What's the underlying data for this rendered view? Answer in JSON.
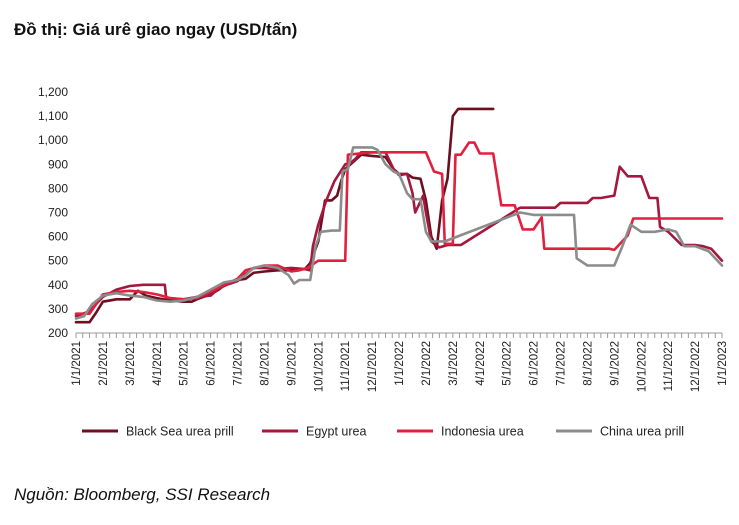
{
  "chart_title": "Đồ thị: Giá urê giao ngay (USD/tấn)",
  "source": "Nguồn: Bloomberg, SSI Research",
  "chart_data": {
    "type": "line",
    "title": "Đồ thị: Giá urê giao ngay (USD/tấn)",
    "xlabel": "",
    "ylabel": "",
    "ylim": [
      200,
      1200
    ],
    "yticks": [
      {
        "value": 200,
        "label": "200"
      },
      {
        "value": 300,
        "label": "300"
      },
      {
        "value": 400,
        "label": "400"
      },
      {
        "value": 500,
        "label": "500"
      },
      {
        "value": 600,
        "label": "600"
      },
      {
        "value": 700,
        "label": "700"
      },
      {
        "value": 800,
        "label": "800"
      },
      {
        "value": 900,
        "label": "900"
      },
      {
        "value": 1000,
        "label": "1,000"
      },
      {
        "value": 1100,
        "label": "1,100"
      },
      {
        "value": 1200,
        "label": "1,200"
      }
    ],
    "xlim": [
      0,
      24
    ],
    "xticks": [
      {
        "value": 0,
        "label": "1/1/2021"
      },
      {
        "value": 1,
        "label": "2/1/2021"
      },
      {
        "value": 2,
        "label": "3/1/2021"
      },
      {
        "value": 3,
        "label": "4/1/2021"
      },
      {
        "value": 4,
        "label": "5/1/2021"
      },
      {
        "value": 5,
        "label": "6/1/2021"
      },
      {
        "value": 6,
        "label": "7/1/2021"
      },
      {
        "value": 7,
        "label": "8/1/2021"
      },
      {
        "value": 8,
        "label": "9/1/2021"
      },
      {
        "value": 9,
        "label": "10/1/2021"
      },
      {
        "value": 10,
        "label": "11/1/2021"
      },
      {
        "value": 11,
        "label": "12/1/2021"
      },
      {
        "value": 12,
        "label": "1/1/2022"
      },
      {
        "value": 13,
        "label": "2/1/2022"
      },
      {
        "value": 14,
        "label": "3/1/2022"
      },
      {
        "value": 15,
        "label": "4/1/2022"
      },
      {
        "value": 16,
        "label": "5/1/2022"
      },
      {
        "value": 17,
        "label": "6/1/2022"
      },
      {
        "value": 18,
        "label": "7/1/2022"
      },
      {
        "value": 19,
        "label": "8/1/2022"
      },
      {
        "value": 20,
        "label": "9/1/2022"
      },
      {
        "value": 21,
        "label": "10/1/2022"
      },
      {
        "value": 22,
        "label": "11/1/2022"
      },
      {
        "value": 23,
        "label": "12/1/2022"
      },
      {
        "value": 24,
        "label": "1/1/2023"
      }
    ],
    "grid": false,
    "legend_position": "bottom",
    "series": [
      {
        "name": "Black Sea urea prill",
        "color": "#6b1020",
        "points": [
          [
            0,
            245
          ],
          [
            0.5,
            245
          ],
          [
            0.75,
            285
          ],
          [
            1.0,
            330
          ],
          [
            1.5,
            340
          ],
          [
            2,
            340
          ],
          [
            2.3,
            375
          ],
          [
            2.6,
            355
          ],
          [
            3,
            345
          ],
          [
            3.5,
            335
          ],
          [
            4,
            330
          ],
          [
            4.3,
            330
          ],
          [
            4.6,
            345
          ],
          [
            5,
            360
          ],
          [
            5.3,
            380
          ],
          [
            5.6,
            405
          ],
          [
            6,
            420
          ],
          [
            6.3,
            425
          ],
          [
            6.6,
            450
          ],
          [
            7,
            455
          ],
          [
            7.5,
            460
          ],
          [
            8,
            460
          ],
          [
            8.5,
            465
          ],
          [
            8.7,
            490
          ],
          [
            9,
            580
          ],
          [
            9.25,
            750
          ],
          [
            9.5,
            750
          ],
          [
            9.7,
            770
          ],
          [
            9.85,
            830
          ],
          [
            10,
            880
          ],
          [
            10.2,
            900
          ],
          [
            10.4,
            920
          ],
          [
            10.6,
            940
          ],
          [
            11,
            935
          ],
          [
            11.5,
            930
          ],
          [
            11.8,
            880
          ],
          [
            12,
            855
          ],
          [
            12.3,
            860
          ],
          [
            12.5,
            845
          ],
          [
            12.8,
            840
          ],
          [
            13,
            750
          ],
          [
            13.2,
            600
          ],
          [
            13.4,
            550
          ],
          [
            13.6,
            750
          ],
          [
            13.8,
            840
          ],
          [
            14,
            1100
          ],
          [
            14.2,
            1130
          ],
          [
            15,
            1130
          ],
          [
            15.5,
            1130
          ]
        ]
      },
      {
        "name": "Egypt urea",
        "color": "#a3183c",
        "points": [
          [
            0,
            270
          ],
          [
            0.5,
            290
          ],
          [
            1,
            350
          ],
          [
            1.5,
            380
          ],
          [
            2,
            395
          ],
          [
            2.5,
            400
          ],
          [
            3,
            400
          ],
          [
            3.3,
            400
          ],
          [
            3.35,
            345
          ],
          [
            4,
            340
          ],
          [
            4.5,
            350
          ],
          [
            5,
            355
          ],
          [
            5.3,
            385
          ],
          [
            5.6,
            400
          ],
          [
            6,
            415
          ],
          [
            6.3,
            445
          ],
          [
            6.6,
            470
          ],
          [
            7,
            470
          ],
          [
            7.5,
            465
          ],
          [
            8,
            470
          ],
          [
            8.5,
            465
          ],
          [
            8.7,
            460
          ],
          [
            8.8,
            560
          ],
          [
            9,
            650
          ],
          [
            9.3,
            750
          ],
          [
            9.6,
            830
          ],
          [
            10,
            900
          ],
          [
            10.2,
            905
          ],
          [
            10.4,
            925
          ],
          [
            10.6,
            950
          ],
          [
            11,
            950
          ],
          [
            11.5,
            950
          ],
          [
            11.8,
            880
          ],
          [
            12,
            860
          ],
          [
            12.3,
            860
          ],
          [
            12.5,
            780
          ],
          [
            12.6,
            700
          ],
          [
            12.9,
            770
          ],
          [
            13,
            700
          ],
          [
            13.2,
            580
          ],
          [
            13.5,
            555
          ],
          [
            13.8,
            565
          ],
          [
            14.3,
            565
          ],
          [
            16.5,
            720
          ],
          [
            17,
            720
          ],
          [
            17.5,
            720
          ],
          [
            17.8,
            720
          ],
          [
            18,
            740
          ],
          [
            18.5,
            740
          ],
          [
            19,
            740
          ],
          [
            19.2,
            760
          ],
          [
            19.5,
            760
          ],
          [
            20,
            770
          ],
          [
            20.2,
            890
          ],
          [
            20.5,
            850
          ],
          [
            21,
            850
          ],
          [
            21.3,
            760
          ],
          [
            21.6,
            760
          ],
          [
            21.7,
            640
          ],
          [
            22,
            620
          ],
          [
            22.5,
            565
          ],
          [
            23,
            565
          ],
          [
            23.3,
            560
          ],
          [
            23.6,
            550
          ],
          [
            24,
            500
          ]
        ]
      },
      {
        "name": "Indonesia urea",
        "color": "#e0203f",
        "points": [
          [
            0,
            280
          ],
          [
            0.5,
            280
          ],
          [
            1,
            360
          ],
          [
            1.5,
            370
          ],
          [
            2,
            375
          ],
          [
            2.5,
            370
          ],
          [
            3,
            360
          ],
          [
            3.5,
            345
          ],
          [
            4,
            340
          ],
          [
            4.5,
            345
          ],
          [
            5,
            370
          ],
          [
            5.5,
            400
          ],
          [
            6,
            425
          ],
          [
            6.3,
            460
          ],
          [
            7,
            480
          ],
          [
            7.5,
            480
          ],
          [
            8,
            455
          ],
          [
            8.3,
            460
          ],
          [
            8.6,
            470
          ],
          [
            9,
            500
          ],
          [
            9.5,
            500
          ],
          [
            10,
            500
          ],
          [
            10.1,
            940
          ],
          [
            11,
            950
          ],
          [
            12,
            950
          ],
          [
            13,
            950
          ],
          [
            13.3,
            870
          ],
          [
            13.6,
            860
          ],
          [
            13.7,
            570
          ],
          [
            14,
            570
          ],
          [
            14.1,
            940
          ],
          [
            14.3,
            940
          ],
          [
            14.6,
            990
          ],
          [
            14.8,
            990
          ],
          [
            15,
            945
          ],
          [
            15.5,
            945
          ],
          [
            15.8,
            730
          ],
          [
            16.3,
            730
          ],
          [
            16.6,
            630
          ],
          [
            17,
            630
          ],
          [
            17.3,
            680
          ],
          [
            17.4,
            550
          ],
          [
            18,
            550
          ],
          [
            19,
            550
          ],
          [
            19.5,
            550
          ],
          [
            19.8,
            550
          ],
          [
            20,
            545
          ],
          [
            20.5,
            605
          ],
          [
            20.7,
            675
          ],
          [
            21,
            675
          ],
          [
            22,
            675
          ],
          [
            23,
            675
          ],
          [
            24,
            675
          ]
        ]
      },
      {
        "name": "China urea prill",
        "color": "#8c8c8c",
        "points": [
          [
            0,
            260
          ],
          [
            0.3,
            270
          ],
          [
            0.6,
            320
          ],
          [
            1,
            355
          ],
          [
            1.5,
            365
          ],
          [
            2,
            355
          ],
          [
            2.5,
            350
          ],
          [
            3,
            335
          ],
          [
            3.5,
            330
          ],
          [
            4,
            335
          ],
          [
            4.5,
            350
          ],
          [
            5,
            380
          ],
          [
            5.5,
            410
          ],
          [
            6,
            420
          ],
          [
            6.3,
            440
          ],
          [
            6.6,
            470
          ],
          [
            7,
            480
          ],
          [
            7.5,
            470
          ],
          [
            7.9,
            440
          ],
          [
            8.1,
            405
          ],
          [
            8.3,
            420
          ],
          [
            8.7,
            420
          ],
          [
            8.9,
            560
          ],
          [
            9.1,
            620
          ],
          [
            9.5,
            625
          ],
          [
            9.8,
            625
          ],
          [
            9.9,
            870
          ],
          [
            10.1,
            880
          ],
          [
            10.3,
            970
          ],
          [
            10.6,
            970
          ],
          [
            11,
            970
          ],
          [
            11.2,
            960
          ],
          [
            11.5,
            900
          ],
          [
            11.8,
            870
          ],
          [
            12,
            860
          ],
          [
            12.3,
            780
          ],
          [
            12.5,
            755
          ],
          [
            12.8,
            755
          ],
          [
            13,
            620
          ],
          [
            13.2,
            580
          ],
          [
            13.5,
            580
          ],
          [
            13.7,
            580
          ],
          [
            16.5,
            700
          ],
          [
            17,
            690
          ],
          [
            18.5,
            690
          ],
          [
            18.6,
            510
          ],
          [
            19,
            480
          ],
          [
            19.5,
            480
          ],
          [
            20,
            480
          ],
          [
            20.3,
            560
          ],
          [
            20.6,
            650
          ],
          [
            21,
            620
          ],
          [
            21.5,
            620
          ],
          [
            22,
            630
          ],
          [
            22.3,
            620
          ],
          [
            22.6,
            560
          ],
          [
            23,
            560
          ],
          [
            23.5,
            540
          ],
          [
            24,
            480
          ]
        ]
      }
    ]
  }
}
